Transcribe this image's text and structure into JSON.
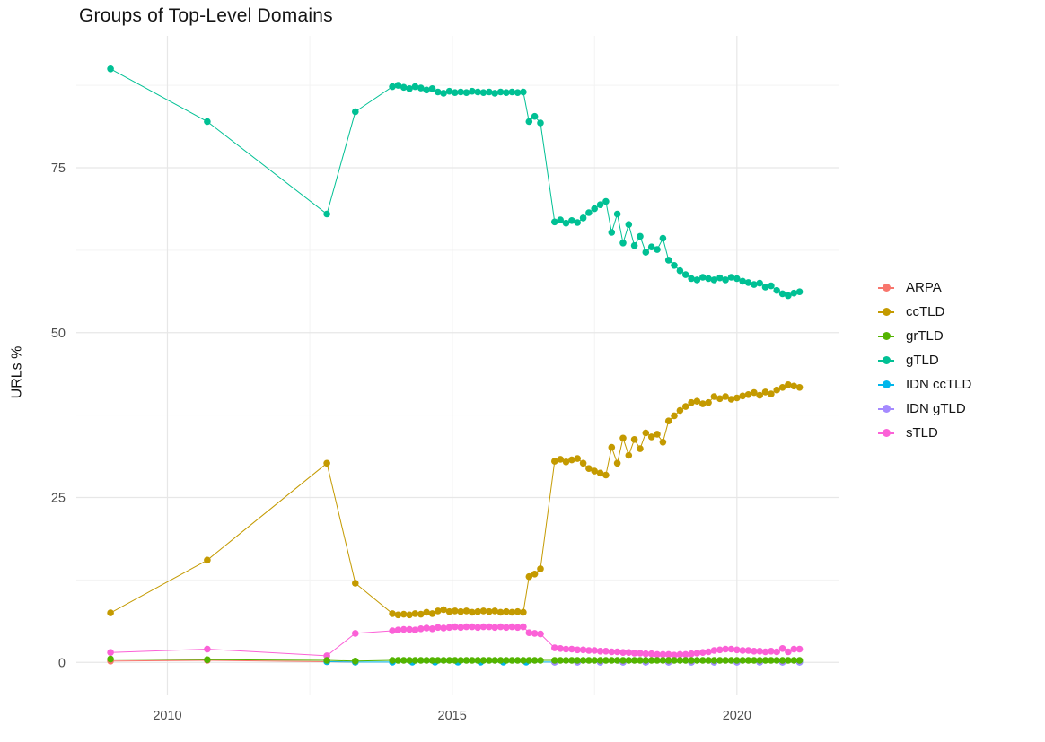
{
  "chart_data": {
    "type": "line",
    "title": "Groups of Top-Level Domains",
    "xlabel": "",
    "ylabel": "URLs %",
    "xlim": [
      2008.4,
      2021.8
    ],
    "ylim": [
      -5,
      95
    ],
    "x_ticks": [
      2010,
      2015,
      2020
    ],
    "y_ticks": [
      0,
      25,
      50,
      75
    ],
    "x_minor": [
      2012.5,
      2017.5
    ],
    "y_minor": [
      12.5,
      37.5,
      62.5,
      87.5
    ],
    "grid": true,
    "legend_position": "right",
    "x": [
      2009.0,
      2010.7,
      2012.8,
      2013.3,
      2013.95,
      2014.05,
      2014.15,
      2014.25,
      2014.35,
      2014.45,
      2014.55,
      2014.65,
      2014.75,
      2014.85,
      2014.95,
      2015.05,
      2015.15,
      2015.25,
      2015.35,
      2015.45,
      2015.55,
      2015.65,
      2015.75,
      2015.85,
      2015.95,
      2016.05,
      2016.15,
      2016.25,
      2016.35,
      2016.45,
      2016.55,
      2016.8,
      2016.9,
      2017.0,
      2017.1,
      2017.2,
      2017.3,
      2017.4,
      2017.5,
      2017.6,
      2017.7,
      2017.8,
      2017.9,
      2018.0,
      2018.1,
      2018.2,
      2018.3,
      2018.4,
      2018.5,
      2018.6,
      2018.7,
      2018.8,
      2018.9,
      2019.0,
      2019.1,
      2019.2,
      2019.3,
      2019.4,
      2019.5,
      2019.6,
      2019.7,
      2019.8,
      2019.9,
      2020.0,
      2020.1,
      2020.2,
      2020.3,
      2020.4,
      2020.5,
      2020.6,
      2020.7,
      2020.8,
      2020.9,
      2021.0,
      2021.1
    ],
    "series": [
      {
        "name": "ARPA",
        "color": "#F8766D",
        "x": [
          2009.0,
          2010.7,
          2012.8,
          2013.3
        ],
        "y": [
          0.2,
          0.3,
          0.1,
          0.05
        ]
      },
      {
        "name": "ccTLD",
        "color": "#C49A00",
        "y": [
          7.5,
          15.5,
          30.2,
          12.0,
          7.4,
          7.2,
          7.3,
          7.2,
          7.4,
          7.3,
          7.6,
          7.4,
          7.8,
          8.0,
          7.7,
          7.8,
          7.7,
          7.8,
          7.6,
          7.7,
          7.8,
          7.7,
          7.8,
          7.6,
          7.7,
          7.6,
          7.7,
          7.6,
          13.0,
          13.4,
          14.2,
          30.5,
          30.8,
          30.4,
          30.7,
          30.9,
          30.2,
          29.4,
          29.0,
          28.7,
          28.4,
          32.6,
          30.2,
          34.0,
          31.4,
          33.8,
          32.4,
          34.8,
          34.2,
          34.6,
          33.4,
          36.6,
          37.4,
          38.2,
          38.8,
          39.4,
          39.6,
          39.2,
          39.4,
          40.3,
          40.0,
          40.3,
          39.9,
          40.1,
          40.4,
          40.6,
          40.9,
          40.5,
          41.0,
          40.7,
          41.3,
          41.7,
          42.1,
          41.9,
          41.7
        ]
      },
      {
        "name": "grTLD",
        "color": "#53B400",
        "y": [
          0.5,
          0.4,
          0.3,
          0.2,
          0.3,
          0.3,
          0.3,
          0.3,
          0.3,
          0.3,
          0.3,
          0.3,
          0.3,
          0.3,
          0.3,
          0.3,
          0.3,
          0.3,
          0.3,
          0.3,
          0.3,
          0.3,
          0.3,
          0.3,
          0.3,
          0.3,
          0.3,
          0.3,
          0.3,
          0.3,
          0.3,
          0.3,
          0.3,
          0.3,
          0.3,
          0.3,
          0.3,
          0.3,
          0.3,
          0.3,
          0.3,
          0.3,
          0.3,
          0.3,
          0.3,
          0.3,
          0.3,
          0.3,
          0.3,
          0.3,
          0.3,
          0.3,
          0.3,
          0.3,
          0.3,
          0.3,
          0.3,
          0.3,
          0.3,
          0.3,
          0.3,
          0.3,
          0.3,
          0.3,
          0.3,
          0.3,
          0.3,
          0.3,
          0.3,
          0.3,
          0.3,
          0.3,
          0.3,
          0.3,
          0.3
        ]
      },
      {
        "name": "gTLD",
        "color": "#00C094",
        "y": [
          90,
          82,
          68,
          83.5,
          87.3,
          87.5,
          87.2,
          87.0,
          87.3,
          87.1,
          86.8,
          87.0,
          86.5,
          86.3,
          86.6,
          86.4,
          86.5,
          86.4,
          86.6,
          86.5,
          86.4,
          86.5,
          86.3,
          86.5,
          86.4,
          86.5,
          86.4,
          86.5,
          82.0,
          82.8,
          81.8,
          66.8,
          67.1,
          66.6,
          67.0,
          66.7,
          67.4,
          68.2,
          68.8,
          69.4,
          69.9,
          65.2,
          68.0,
          63.6,
          66.4,
          63.2,
          64.6,
          62.2,
          63.0,
          62.6,
          64.3,
          61.0,
          60.2,
          59.4,
          58.8,
          58.2,
          58.0,
          58.4,
          58.2,
          58.0,
          58.3,
          58.0,
          58.4,
          58.2,
          57.8,
          57.6,
          57.3,
          57.5,
          56.9,
          57.1,
          56.4,
          55.9,
          55.6,
          56.0,
          56.2
        ]
      },
      {
        "name": "IDN ccTLD",
        "color": "#00B6EB",
        "x": [
          2012.8,
          2013.3,
          2013.95,
          2014.3,
          2014.7,
          2015.1,
          2015.5,
          2015.9,
          2016.3,
          2016.8,
          2017.2,
          2017.6,
          2018.0,
          2018.4,
          2018.8,
          2019.2,
          2019.6,
          2020.0,
          2020.4,
          2020.8,
          2021.1
        ],
        "y": [
          0.1,
          0.05,
          0.05,
          0.05,
          0.05,
          0.05,
          0.05,
          0.05,
          0.05,
          0.05,
          0.05,
          0.05,
          0.05,
          0.05,
          0.05,
          0.05,
          0.05,
          0.05,
          0.05,
          0.05,
          0.05
        ]
      },
      {
        "name": "IDN gTLD",
        "color": "#A58AFF",
        "x": [
          2016.8,
          2017.2,
          2017.6,
          2018.0,
          2018.4,
          2018.8,
          2019.2,
          2019.6,
          2020.0,
          2020.4,
          2020.8,
          2021.1
        ],
        "y": [
          0.05,
          0.05,
          0.05,
          0.05,
          0.05,
          0.05,
          0.05,
          0.05,
          0.05,
          0.05,
          0.05,
          0.05
        ]
      },
      {
        "name": "sTLD",
        "color": "#FB61D7",
        "y": [
          1.5,
          2.0,
          1.0,
          4.4,
          4.8,
          4.9,
          5.0,
          5.0,
          4.9,
          5.1,
          5.2,
          5.1,
          5.3,
          5.2,
          5.3,
          5.4,
          5.3,
          5.4,
          5.4,
          5.3,
          5.4,
          5.4,
          5.3,
          5.4,
          5.3,
          5.4,
          5.3,
          5.4,
          4.5,
          4.4,
          4.3,
          2.2,
          2.1,
          2.0,
          2.0,
          1.9,
          1.9,
          1.8,
          1.8,
          1.7,
          1.7,
          1.6,
          1.6,
          1.5,
          1.5,
          1.4,
          1.4,
          1.3,
          1.3,
          1.2,
          1.2,
          1.2,
          1.1,
          1.2,
          1.2,
          1.3,
          1.4,
          1.5,
          1.6,
          1.8,
          1.9,
          2.0,
          2.0,
          1.9,
          1.8,
          1.8,
          1.7,
          1.7,
          1.6,
          1.7,
          1.6,
          2.1,
          1.6,
          2.0,
          2.0
        ]
      }
    ]
  }
}
